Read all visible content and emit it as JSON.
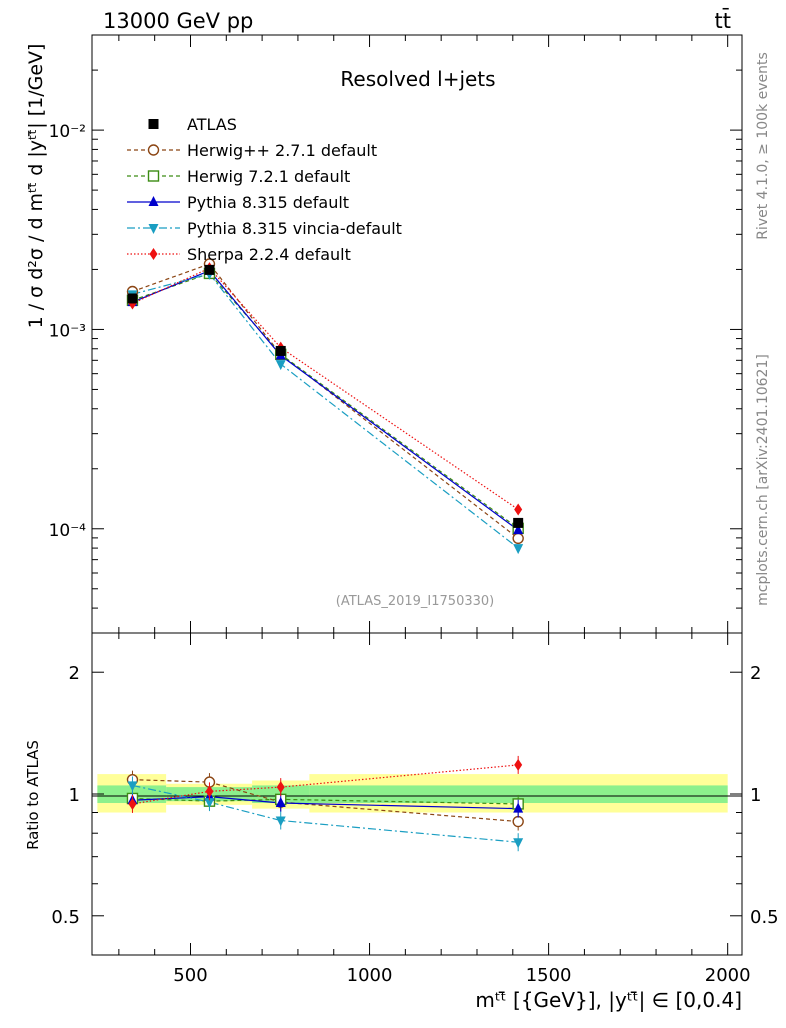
{
  "chart_data": [
    {
      "type": "line",
      "panel": "main",
      "title": "Resolved l+jets",
      "header_left": "13000 GeV pp",
      "header_right": "tt̄",
      "watermark": "(ATLAS_2019_I1750330)",
      "side_label_top": "Rivet 4.1.0, ≥ 100k events",
      "side_label_bottom": "mcplots.cern.ch [arXiv:2401.10621]",
      "ylabel": "1 / σ d²σ / d mᵗᵗ̄ d |yᵗᵗ̄| [1/GeV]",
      "yscale": "log",
      "ylim": [
        3e-05,
        0.03
      ],
      "xlim": [
        225,
        2040
      ],
      "y_ticks": [
        {
          "value": 0.0001,
          "label": "10⁻⁴"
        },
        {
          "value": 0.001,
          "label": "10⁻³"
        },
        {
          "value": 0.01,
          "label": "10⁻²"
        }
      ],
      "x": [
        338,
        553,
        752,
        1415
      ],
      "data": {
        "name": "ATLAS",
        "values": [
          0.00143,
          0.00199,
          0.00078,
          0.000107
        ],
        "color": "#000000"
      },
      "series": [
        {
          "name": "Herwig++ 2.7.1 default",
          "values": [
            0.00155,
            0.00213,
            0.00075,
            8.95e-05
          ],
          "color": "#8b4513",
          "dash": "4,3",
          "marker": "circle-open"
        },
        {
          "name": "Herwig 7.2.1 default",
          "values": [
            0.0014,
            0.00191,
            0.00075,
            0.0001005
          ],
          "color": "#3c8c14",
          "dash": "4,3",
          "marker": "square-open"
        },
        {
          "name": "Pythia 8.315 default",
          "values": [
            0.00137,
            0.00197,
            0.00074,
            9.85e-05
          ],
          "color": "#0000cc",
          "dash": "",
          "marker": "triangle-up"
        },
        {
          "name": "Pythia 8.315 vincia-default",
          "values": [
            0.0015,
            0.0019,
            0.00067,
            8e-05
          ],
          "color": "#1a9ec2",
          "dash": "8,3,2,3",
          "marker": "triangle-down"
        },
        {
          "name": "Sherpa 2.2.4 default",
          "values": [
            0.00135,
            0.00203,
            0.00081,
            0.000125
          ],
          "color": "#ee1111",
          "dash": "1.5,2",
          "marker": "diamond"
        }
      ]
    },
    {
      "type": "line",
      "panel": "ratio",
      "ylabel": "Ratio to ATLAS",
      "xlabel": "mᵗᵗ̄ [{GeV}], |yᵗᵗ̄| ∈ [0,0.4]",
      "yscale": "log",
      "ylim": [
        0.4,
        2.5
      ],
      "xlim": [
        225,
        2040
      ],
      "y_ticks": [
        {
          "value": 0.5,
          "label": "0.5"
        },
        {
          "value": 1,
          "label": "1"
        },
        {
          "value": 2,
          "label": "2"
        }
      ],
      "x_ticks": [
        {
          "value": 500,
          "label": "500"
        },
        {
          "value": 1000,
          "label": "1000"
        },
        {
          "value": 1500,
          "label": "1500"
        },
        {
          "value": 2000,
          "label": "2000"
        }
      ],
      "bands": [
        {
          "x": [
            240,
            432
          ],
          "inner": [
            0.95,
            1.05
          ],
          "outer": [
            0.9,
            1.12
          ]
        },
        {
          "x": [
            432,
            672
          ],
          "inner": [
            0.96,
            1.04
          ],
          "outer": [
            0.94,
            1.06
          ]
        },
        {
          "x": [
            672,
            832
          ],
          "inner": [
            0.95,
            1.05
          ],
          "outer": [
            0.92,
            1.08
          ]
        },
        {
          "x": [
            832,
            2000
          ],
          "inner": [
            0.95,
            1.05
          ],
          "outer": [
            0.9,
            1.12
          ]
        }
      ],
      "x": [
        338,
        553,
        752,
        1415
      ],
      "series": [
        {
          "name": "Herwig++ 2.7.1 default",
          "values": [
            1.085,
            1.07,
            0.955,
            0.855
          ],
          "color": "#8b4513",
          "dash": "4,3",
          "marker": "circle-open"
        },
        {
          "name": "Herwig 7.2.1 default",
          "values": [
            0.975,
            0.96,
            0.97,
            0.945
          ],
          "color": "#3c8c14",
          "dash": "4,3",
          "marker": "square-open"
        },
        {
          "name": "Pythia 8.315 default",
          "values": [
            0.965,
            0.985,
            0.95,
            0.92
          ],
          "color": "#0000cc",
          "dash": "",
          "marker": "triangle-up"
        },
        {
          "name": "Pythia 8.315 vincia-default",
          "values": [
            1.05,
            0.955,
            0.86,
            0.76
          ],
          "color": "#1a9ec2",
          "dash": "8,3,2,3",
          "marker": "triangle-down"
        },
        {
          "name": "Sherpa 2.2.4 default",
          "values": [
            0.945,
            1.015,
            1.04,
            1.18
          ],
          "color": "#ee1111",
          "dash": "1.5,2",
          "marker": "diamond"
        }
      ]
    }
  ]
}
